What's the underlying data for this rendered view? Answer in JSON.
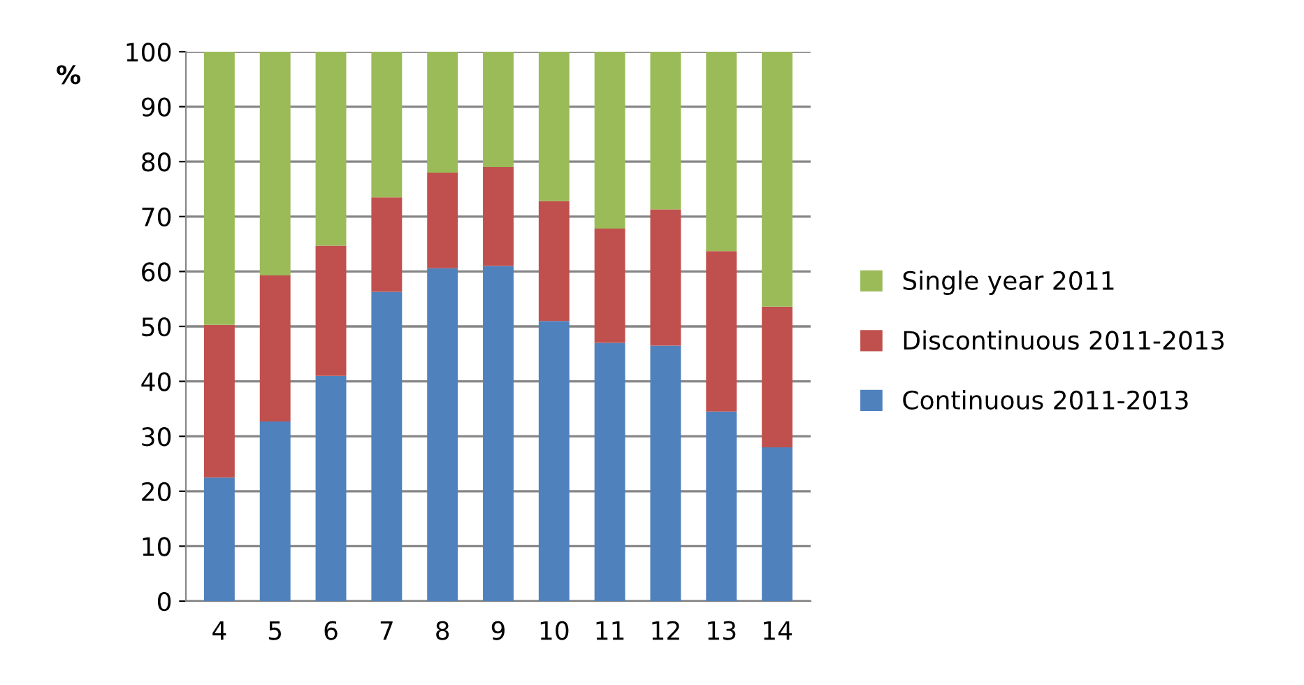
{
  "chart_data": {
    "type": "bar",
    "stacked": true,
    "ylabel": "%",
    "categories": [
      "4",
      "5",
      "6",
      "7",
      "8",
      "9",
      "10",
      "11",
      "12",
      "13",
      "14"
    ],
    "series": [
      {
        "name": "Continuous 2011-2013",
        "color": "#4f81bd",
        "values": [
          22.5,
          32.7,
          41,
          56.3,
          60.6,
          61,
          51,
          47,
          46.5,
          34.5,
          28
        ]
      },
      {
        "name": "Discontinuous 2011-2013",
        "color": "#c0504d",
        "values": [
          27.8,
          26.6,
          23.7,
          17.2,
          17.4,
          18,
          21.8,
          20.8,
          24.8,
          29.2,
          25.6
        ]
      },
      {
        "name": "Single year 2011",
        "color": "#9bbb59",
        "values": [
          49.7,
          40.7,
          35.3,
          26.5,
          22,
          21,
          27.2,
          32.2,
          28.7,
          36.3,
          46.4
        ]
      }
    ],
    "ylim": [
      0,
      100
    ],
    "yticks": [
      0,
      10,
      20,
      30,
      40,
      50,
      60,
      70,
      80,
      90,
      100
    ],
    "grid": "y",
    "legend": "right"
  }
}
